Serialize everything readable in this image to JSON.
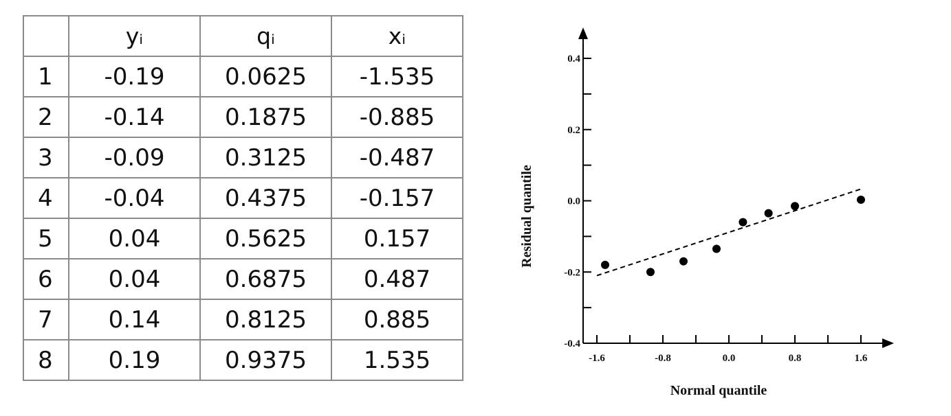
{
  "table": {
    "headers": [
      "",
      "yᵢ",
      "qᵢ",
      "xᵢ"
    ],
    "rows": [
      [
        "1",
        "-0.19",
        "0.0625",
        "-1.535"
      ],
      [
        "2",
        "-0.14",
        "0.1875",
        "-0.885"
      ],
      [
        "3",
        "-0.09",
        "0.3125",
        "-0.487"
      ],
      [
        "4",
        "-0.04",
        "0.4375",
        "-0.157"
      ],
      [
        "5",
        "0.04",
        "0.5625",
        "0.157"
      ],
      [
        "6",
        "0.04",
        "0.6875",
        "0.487"
      ],
      [
        "7",
        "0.14",
        "0.8125",
        "0.885"
      ],
      [
        "8",
        "0.19",
        "0.9375",
        "1.535"
      ]
    ]
  },
  "chart_data": {
    "type": "scatter",
    "xlabel": "Normal quantile",
    "ylabel": "Residual quantile",
    "xlim": [
      -1.6,
      1.6
    ],
    "ylim": [
      -0.4,
      0.4
    ],
    "xticks": [
      "-1.6",
      "-0.8",
      "0.0",
      "0.8",
      "1.6"
    ],
    "yticks": [
      "0.4",
      "0.2",
      "0.0",
      "-0.2",
      "-0.4"
    ],
    "points": {
      "x": [
        -1.5,
        -0.95,
        -0.55,
        -0.15,
        0.17,
        0.48,
        0.8,
        1.6
      ],
      "y": [
        -0.18,
        -0.2,
        -0.17,
        -0.135,
        -0.06,
        -0.035,
        -0.015,
        0.003
      ]
    },
    "reference_line": {
      "x": [
        -1.6,
        1.6
      ],
      "y": [
        -0.21,
        0.033
      ],
      "style": "dashed"
    },
    "grid": false,
    "colors": {
      "marker": "#000000",
      "axis": "#000000"
    }
  }
}
